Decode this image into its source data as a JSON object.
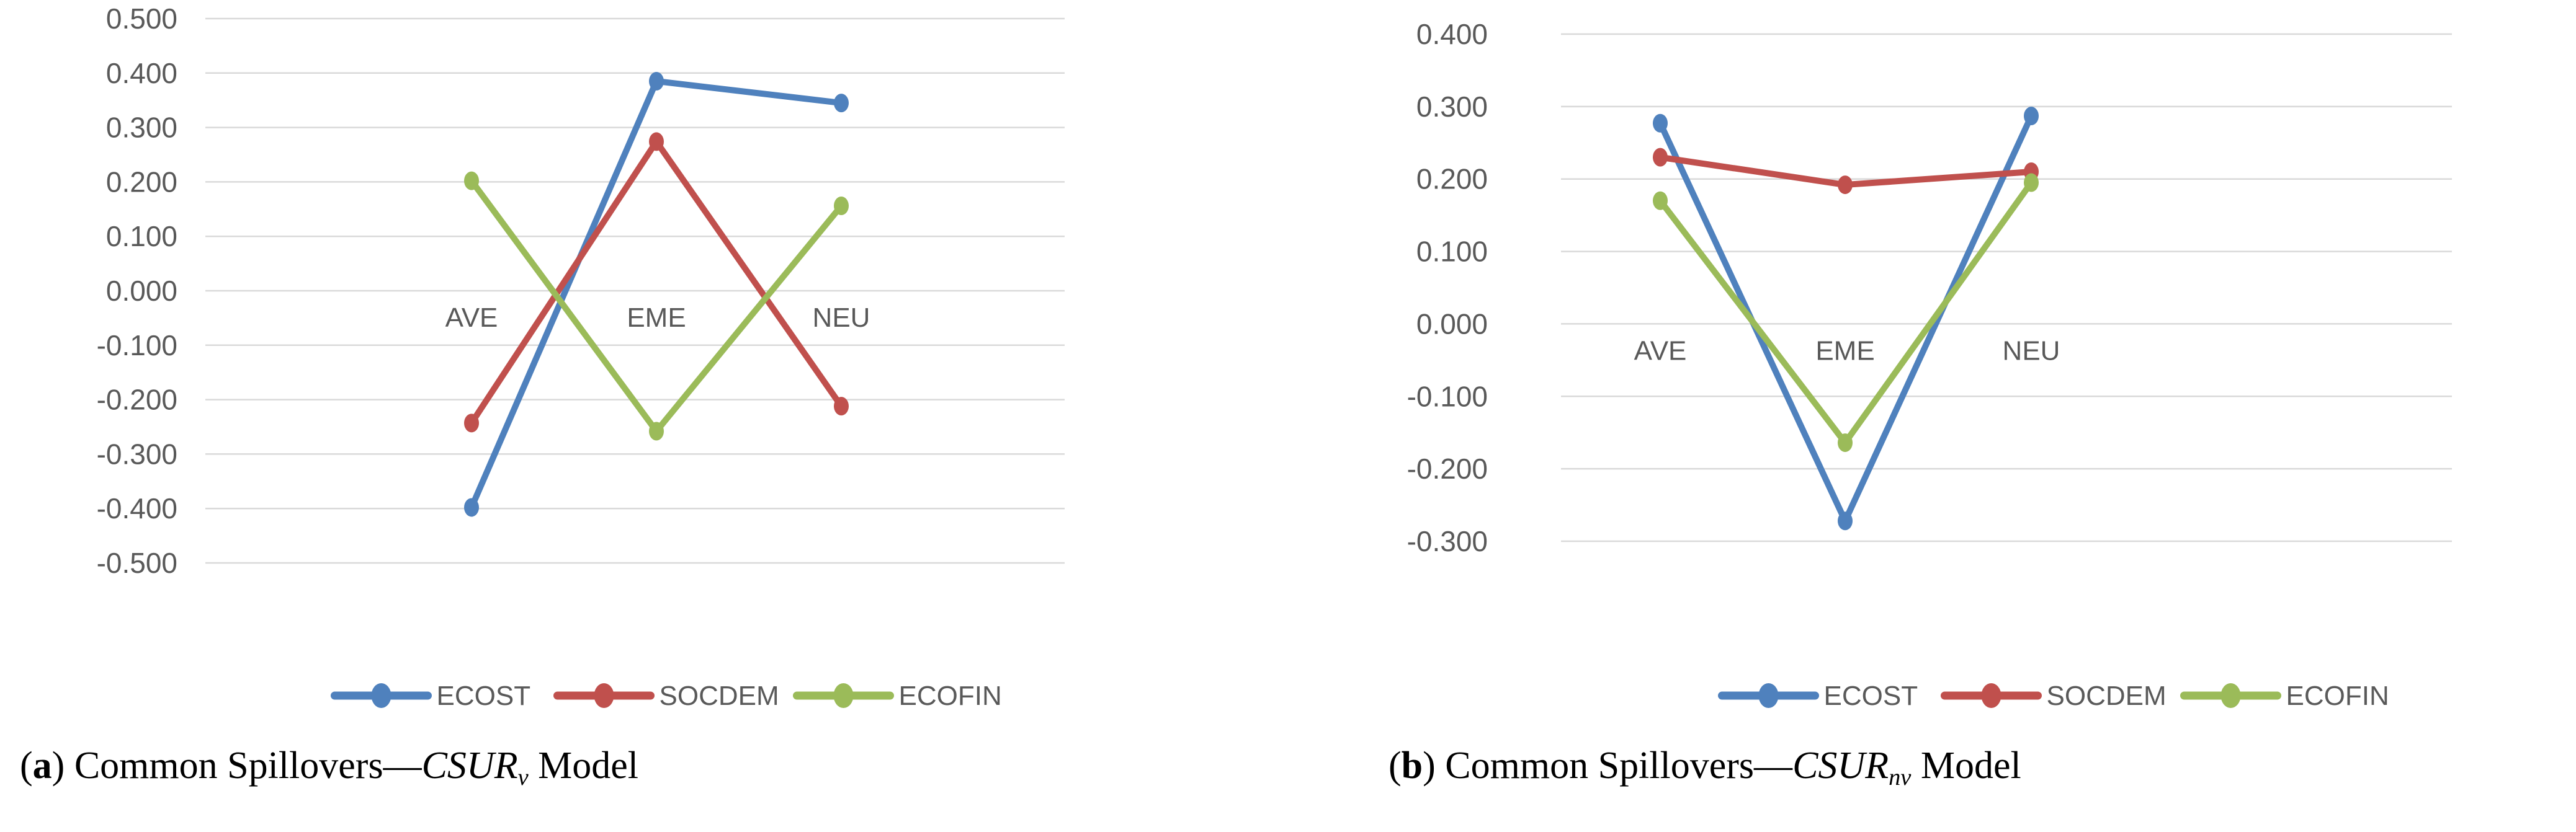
{
  "chart_data": [
    {
      "id": "a",
      "type": "line",
      "title": "",
      "xlabel": "",
      "ylabel": "",
      "categories": [
        "AVE",
        "EME",
        "NEU"
      ],
      "series": [
        {
          "name": "ECOST",
          "color": "#4F81BD",
          "values": [
            -0.398,
            0.385,
            0.345
          ]
        },
        {
          "name": "SOCDEM",
          "color": "#C0504D",
          "values": [
            -0.243,
            0.274,
            -0.212
          ]
        },
        {
          "name": "ECOFIN",
          "color": "#9BBB59",
          "values": [
            0.202,
            -0.258,
            0.156
          ]
        }
      ],
      "ylim": [
        -0.5,
        0.5
      ],
      "y_step": 0.1,
      "y_tick_labels": [
        "0.500",
        "0.400",
        "0.300",
        "0.200",
        "0.100",
        "0.000",
        "-0.100",
        "-0.200",
        "-0.300",
        "-0.400",
        "-0.500"
      ],
      "grid": true,
      "legend_position": "bottom",
      "marker": "circle"
    },
    {
      "id": "b",
      "type": "line",
      "title": "",
      "xlabel": "",
      "ylabel": "",
      "categories": [
        "AVE",
        "EME",
        "NEU"
      ],
      "series": [
        {
          "name": "ECOST",
          "color": "#4F81BD",
          "values": [
            0.277,
            -0.272,
            0.287
          ]
        },
        {
          "name": "SOCDEM",
          "color": "#C0504D",
          "values": [
            0.23,
            0.192,
            0.21
          ]
        },
        {
          "name": "ECOFIN",
          "color": "#9BBB59",
          "values": [
            0.17,
            -0.164,
            0.195
          ]
        }
      ],
      "ylim": [
        -0.3,
        0.4
      ],
      "y_step": 0.1,
      "y_tick_labels": [
        "0.400",
        "0.300",
        "0.200",
        "0.100",
        "0.000",
        "-0.100",
        "-0.200",
        "-0.300"
      ],
      "grid": true,
      "legend_position": "bottom",
      "marker": "circle"
    }
  ],
  "captions": [
    {
      "open": "(",
      "letter": "a",
      "close": ")",
      "body": " Common Spillovers—",
      "model": "CSUR",
      "subscript": "v",
      "tail": " Model"
    },
    {
      "open": "(",
      "letter": "b",
      "close": ")",
      "body": " Common Spillovers—",
      "model": "CSUR",
      "subscript": "nv",
      "tail": " Model"
    }
  ],
  "colors": {
    "background": "#FFFFFF",
    "gridline": "#D9D9D9",
    "axis_text": "#595959",
    "caption_text": "#000000",
    "ecost": "#4F81BD",
    "socdem": "#C0504D",
    "ecofin": "#9BBB59"
  }
}
